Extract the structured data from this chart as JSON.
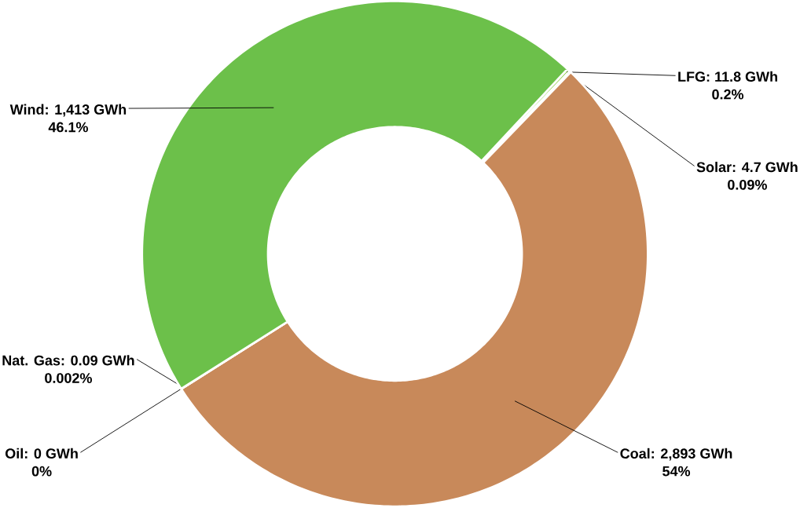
{
  "chart_data": {
    "type": "donut",
    "categories": [
      "LFG: 11.8 GWh",
      "Solar: 4.7 GWh",
      "Coal: 2,893 GWh",
      "Nat. Gas: 0.09 GWh",
      "Oil: 0 GWh",
      "Wind: 1,413 GWh"
    ],
    "values": [
      0.2,
      0.09,
      54,
      0.002,
      0,
      46.1
    ],
    "value_labels": [
      "0.2%",
      "0.09%",
      "54%",
      "0.002%",
      "0%",
      "46.1%"
    ],
    "colors": [
      "#92d050",
      "#2eaa4a",
      "#c8895a",
      "#a5a5a5",
      "#7f7f7f",
      "#6cc04a"
    ]
  }
}
